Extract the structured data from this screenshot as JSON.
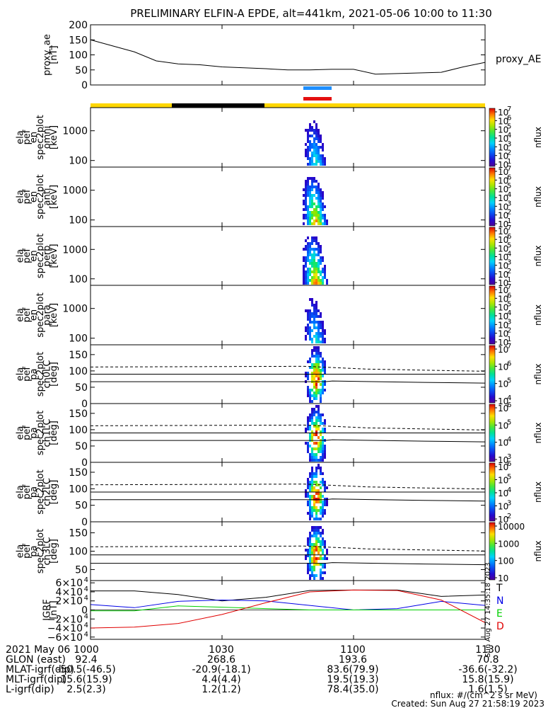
{
  "title": "PRELIMINARY ELFIN-A EPDE, alt=441km, 2021-05-06 10:00 to 11:30",
  "colors": {
    "blue_bar": "#1e8fff",
    "red_bar": "#e41010",
    "yellow_bar": "#ffd700",
    "black_bar": "#000000",
    "trace_T": "#000000",
    "trace_N": "#0000e6",
    "trace_E": "#00d000",
    "trace_D": "#e00000"
  },
  "chart_data": [
    {
      "type": "line",
      "name": "proxy_ae",
      "ylabel_lines": [
        "proxy_ae",
        "[nT]"
      ],
      "legend": "proxy_AE",
      "ylim": [
        0,
        200
      ],
      "yticks": [
        "200",
        "150",
        "100",
        "50",
        "0"
      ],
      "yticks_values": [
        200,
        150,
        100,
        50,
        0
      ],
      "x_minutes": [
        0,
        5,
        10,
        15,
        20,
        25,
        30,
        35,
        40,
        45,
        50,
        55,
        60,
        65,
        70,
        75,
        80,
        85,
        90
      ],
      "y": [
        150,
        130,
        110,
        80,
        70,
        67,
        60,
        57,
        54,
        50,
        50,
        52,
        52,
        36,
        38,
        40,
        42,
        60,
        75
      ]
    },
    {
      "type": "heatmap",
      "name": "omni",
      "ylabel_lines": [
        "ela",
        "pef",
        "en",
        "spec2plot",
        "omni",
        "[keV]"
      ],
      "yscale": "log",
      "yticks": [
        "1000",
        "100"
      ],
      "yticks_values": [
        1000,
        100
      ],
      "ylim": [
        60,
        6000
      ],
      "colorbar": {
        "label": "nflux",
        "ticks": [
          "10",
          "10",
          "10",
          "10",
          "10",
          "10",
          "10"
        ],
        "exp": [
          "7",
          "6",
          "5",
          "4",
          "3",
          "2",
          "1"
        ]
      }
    },
    {
      "type": "heatmap",
      "name": "anti",
      "ylabel_lines": [
        "ela",
        "pef",
        "en",
        "spec2plot",
        "anti",
        "[keV]"
      ],
      "yscale": "log",
      "yticks": [
        "1000",
        "100"
      ],
      "yticks_values": [
        1000,
        100
      ],
      "ylim": [
        60,
        6000
      ],
      "colorbar": {
        "label": "nflux",
        "ticks": [
          "10",
          "10",
          "10",
          "10",
          "10",
          "10",
          "10"
        ],
        "exp": [
          "7",
          "6",
          "5",
          "4",
          "3",
          "2",
          "1"
        ]
      }
    },
    {
      "type": "heatmap",
      "name": "perp",
      "ylabel_lines": [
        "ela",
        "pef",
        "en",
        "spec2plot",
        "perp",
        "[keV]"
      ],
      "yscale": "log",
      "yticks": [
        "1000",
        "100"
      ],
      "yticks_values": [
        1000,
        100
      ],
      "ylim": [
        60,
        6000
      ],
      "colorbar": {
        "label": "nflux",
        "ticks": [
          "10",
          "10",
          "10",
          "10",
          "10",
          "10",
          "10"
        ],
        "exp": [
          "7",
          "6",
          "5",
          "4",
          "3",
          "2",
          "1"
        ]
      }
    },
    {
      "type": "heatmap",
      "name": "para",
      "ylabel_lines": [
        "ela",
        "pef",
        "en",
        "spec2plot",
        "para",
        "[keV]"
      ],
      "yscale": "log",
      "yticks": [
        "1000",
        "100"
      ],
      "yticks_values": [
        1000,
        100
      ],
      "ylim": [
        60,
        6000
      ],
      "colorbar": {
        "label": "nflux",
        "ticks": [
          "10",
          "10",
          "10",
          "10",
          "10",
          "10",
          "10"
        ],
        "exp": [
          "7",
          "6",
          "5",
          "4",
          "3",
          "2",
          "1"
        ]
      }
    },
    {
      "type": "heatmap",
      "name": "ch0LC",
      "ylabel_lines": [
        "ela",
        "pef",
        "pa",
        "spec2plot",
        "ch0LC",
        "[deg]"
      ],
      "yticks": [
        "150",
        "100",
        "50",
        "0"
      ],
      "yticks_values": [
        150,
        100,
        50,
        0
      ],
      "ylim": [
        0,
        180
      ],
      "colorbar": {
        "label": "nflux",
        "ticks": [
          "10",
          "10",
          "10",
          "10"
        ],
        "exp": [
          "7",
          "6",
          "5",
          "4"
        ]
      }
    },
    {
      "type": "heatmap",
      "name": "ch1LC",
      "ylabel_lines": [
        "ela",
        "pef",
        "pa",
        "spec2plot",
        "ch1LC",
        "[deg]"
      ],
      "yticks": [
        "150",
        "100",
        "50",
        "0"
      ],
      "yticks_values": [
        150,
        100,
        50,
        0
      ],
      "ylim": [
        0,
        180
      ],
      "colorbar": {
        "label": "nflux",
        "ticks": [
          "10",
          "10",
          "10",
          "10"
        ],
        "exp": [
          "6",
          "5",
          "4",
          "3"
        ]
      }
    },
    {
      "type": "heatmap",
      "name": "ch2LC",
      "ylabel_lines": [
        "ela",
        "pef",
        "pa",
        "spec2plot",
        "ch2LC",
        "[deg]"
      ],
      "yticks": [
        "150",
        "100",
        "50",
        "0"
      ],
      "yticks_values": [
        150,
        100,
        50,
        0
      ],
      "ylim": [
        0,
        180
      ],
      "colorbar": {
        "label": "nflux",
        "ticks": [
          "10",
          "10",
          "10",
          "10",
          "10"
        ],
        "exp": [
          "6",
          "5",
          "4",
          "3",
          "2"
        ]
      }
    },
    {
      "type": "heatmap",
      "name": "ch3LC",
      "ylabel_lines": [
        "ela",
        "pef",
        "pa",
        "spec2plot",
        "ch3LC",
        "[deg]"
      ],
      "yticks": [
        "150",
        "100",
        "50"
      ],
      "yticks_values": [
        150,
        100,
        50
      ],
      "ylim": [
        20,
        180
      ],
      "colorbar": {
        "label": "nflux",
        "ticks": [
          "10000",
          "1000",
          "100",
          "10"
        ]
      }
    },
    {
      "type": "line",
      "name": "IGRF",
      "ylabel_lines": [
        "IGRF",
        "[nT]"
      ],
      "ylim": [
        -65000,
        65000
      ],
      "yticks": [
        "6×10",
        "4×10",
        "2×10",
        "0",
        "−2×10",
        "−4×10",
        "−6×10"
      ],
      "yticks_exp": [
        "4",
        "4",
        "4",
        "",
        "4",
        "4",
        "4"
      ],
      "yticks_values": [
        60000,
        40000,
        20000,
        0,
        -20000,
        -40000,
        -60000
      ],
      "x_minutes": [
        0,
        10,
        20,
        30,
        40,
        50,
        60,
        70,
        80,
        90
      ],
      "series": [
        {
          "name": "T",
          "values": [
            42000,
            42000,
            34000,
            20000,
            28000,
            43000,
            44000,
            44000,
            30000,
            33000
          ]
        },
        {
          "name": "N",
          "values": [
            12000,
            5000,
            19000,
            22000,
            20000,
            10000,
            0,
            3000,
            19000,
            10000
          ]
        },
        {
          "name": "E",
          "values": [
            -2000,
            -2000,
            9000,
            6000,
            3000,
            0,
            0,
            0,
            0,
            0
          ]
        },
        {
          "name": "D",
          "values": [
            -40000,
            -38000,
            -30000,
            -10000,
            16000,
            40000,
            44000,
            43000,
            22000,
            -28000
          ]
        }
      ],
      "side_text": "Sun Aug 27 14:35:18 2023"
    }
  ],
  "xaxis": {
    "ticks": [
      "1000",
      "1030",
      "1100",
      "1130"
    ],
    "tick_minutes": [
      0,
      30,
      60,
      90
    ],
    "range_minutes": [
      0,
      90
    ]
  },
  "footer": {
    "rows": [
      {
        "label": "2021 May 06",
        "values": [
          "1000",
          "1030",
          "1100",
          "1130"
        ]
      },
      {
        "label": "GLON (east)",
        "values": [
          "92.4",
          "268.6",
          "193.6",
          "70.8"
        ]
      },
      {
        "label": "MLAT-igrf(dip)",
        "values": [
          "-50.5(-46.5)",
          "-20.9(-18.1)",
          "83.6(79.9)",
          "-36.6(-32.2)"
        ]
      },
      {
        "label": "MLT-igrf(dip)",
        "values": [
          "15.6(15.9)",
          "4.4(4.4)",
          "19.5(19.3)",
          "15.8(15.9)"
        ]
      },
      {
        "label": "L-igrf(dip)",
        "values": [
          "2.5(2.3)",
          "1.2(1.2)",
          "78.4(35.0)",
          "1.6(1.5)"
        ]
      }
    ],
    "note1": "nflux: #/(cm^2 s sr MeV)",
    "note2": "Created: Sun Aug 27 21:58:19 2023"
  }
}
